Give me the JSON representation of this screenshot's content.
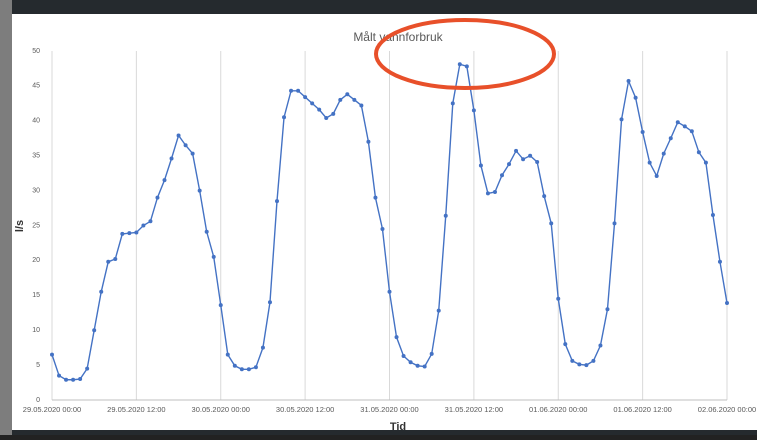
{
  "chart_data": {
    "type": "line",
    "title": "Målt vannforbruk",
    "x_label": "Tid",
    "y_label": "l/s",
    "categories": [
      "29.05.2020 00:00",
      null,
      null,
      null,
      null,
      null,
      null,
      null,
      null,
      null,
      null,
      null,
      "29.05.2020 12:00",
      null,
      null,
      null,
      null,
      null,
      null,
      null,
      null,
      null,
      null,
      null,
      "30.05.2020 00:00",
      null,
      null,
      null,
      null,
      null,
      null,
      null,
      null,
      null,
      null,
      null,
      "30.05.2020 12:00",
      null,
      null,
      null,
      null,
      null,
      null,
      null,
      null,
      null,
      null,
      null,
      "31.05.2020 00:00",
      null,
      null,
      null,
      null,
      null,
      null,
      null,
      null,
      null,
      null,
      null,
      "31.05.2020 12:00",
      null,
      null,
      null,
      null,
      null,
      null,
      null,
      null,
      null,
      null,
      null,
      "01.06.2020 00:00",
      null,
      null,
      null,
      null,
      null,
      null,
      null,
      null,
      null,
      null,
      null,
      "01.06.2020 12:00",
      null,
      null,
      null,
      null,
      null,
      null,
      null,
      null,
      null,
      null,
      null,
      "02.06.2020 00:00"
    ],
    "series": [
      {
        "name": "Målt vannforbruk",
        "color": "#4472c4",
        "values": [
          6.5,
          3.5,
          2.9,
          2.9,
          3.0,
          4.5,
          10,
          15.5,
          19.8,
          20.2,
          23.8,
          23.9,
          24.0,
          25,
          25.6,
          29,
          31.5,
          34.6,
          37.9,
          36.5,
          35.3,
          30,
          24.1,
          20.5,
          13.6,
          6.5,
          4.9,
          4.4,
          4.4,
          4.7,
          7.5,
          14,
          28.5,
          40.5,
          44.3,
          44.3,
          43.4,
          42.5,
          41.6,
          40.4,
          41,
          43,
          43.8,
          43,
          42.2,
          37,
          29,
          24.5,
          15.5,
          9,
          6.3,
          5.4,
          4.9,
          4.8,
          6.6,
          12.8,
          26.4,
          42.5,
          48.1,
          47.8,
          41.5,
          33.6,
          29.6,
          29.8,
          32.2,
          33.8,
          35.7,
          34.5,
          35,
          34.1,
          29.2,
          25.3,
          14.5,
          8,
          5.6,
          5.1,
          5.0,
          5.6,
          7.8,
          13,
          25.3,
          40.2,
          45.7,
          43.3,
          38.4,
          34,
          32.1,
          35.3,
          37.5,
          39.8,
          39.2,
          38.5,
          35.5,
          34,
          26.5,
          19.8,
          13.9
        ]
      }
    ],
    "ylim": [
      0,
      50
    ],
    "yticks": [
      0,
      5,
      10,
      15,
      20,
      25,
      30,
      35,
      40,
      45,
      50
    ],
    "grid": "x"
  }
}
